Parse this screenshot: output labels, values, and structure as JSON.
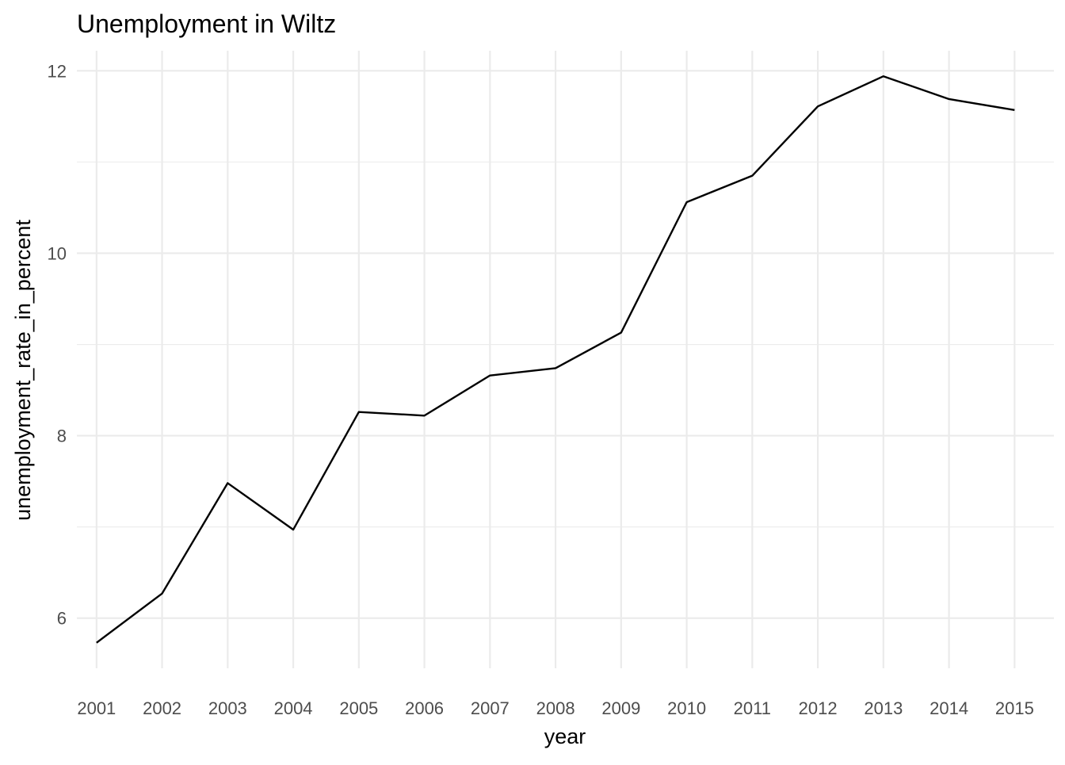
{
  "chart_data": {
    "type": "line",
    "title": "Unemployment in Wiltz",
    "xlabel": "year",
    "ylabel": "unemployment_rate_in_percent",
    "x": [
      2001,
      2002,
      2003,
      2004,
      2005,
      2006,
      2007,
      2008,
      2009,
      2010,
      2011,
      2012,
      2013,
      2014,
      2015
    ],
    "series": [
      {
        "values": [
          5.73,
          6.27,
          7.48,
          6.97,
          8.26,
          8.22,
          8.66,
          8.74,
          9.13,
          10.56,
          10.85,
          11.61,
          11.94,
          11.69,
          11.57
        ]
      }
    ],
    "x_ticks": [
      "2001",
      "2002",
      "2003",
      "2004",
      "2005",
      "2006",
      "2007",
      "2008",
      "2009",
      "2010",
      "2011",
      "2012",
      "2013",
      "2014",
      "2015"
    ],
    "y_ticks": [
      "6",
      "8",
      "10",
      "12"
    ],
    "xlim": [
      2000.7,
      2015.6
    ],
    "ylim": [
      5.45,
      12.22
    ],
    "grid": true,
    "line_color": "#000000",
    "grid_color": "#ebebeb"
  }
}
